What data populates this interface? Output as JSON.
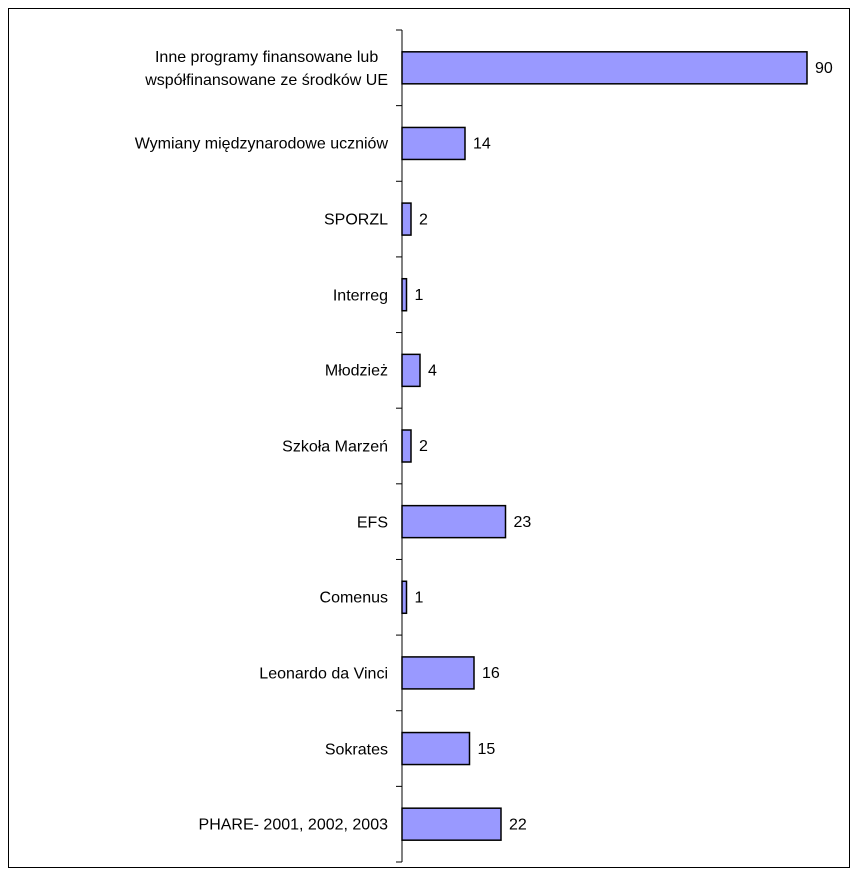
{
  "chart_data": {
    "type": "bar",
    "orientation": "horizontal",
    "categories": [
      "Inne programy finansowane lub\nwspółfinansowane ze środków UE",
      "Wymiany międzynarodowe uczniów",
      "SPORZL",
      "Interreg",
      "Młodzież",
      "Szkoła Marzeń",
      "EFS",
      "Comenus",
      "Leonardo da Vinci",
      "Sokrates",
      "PHARE- 2001, 2002, 2003"
    ],
    "values": [
      90,
      14,
      2,
      1,
      4,
      2,
      23,
      1,
      16,
      15,
      22
    ],
    "color": "#9999ff",
    "xlim": [
      0,
      90
    ]
  }
}
